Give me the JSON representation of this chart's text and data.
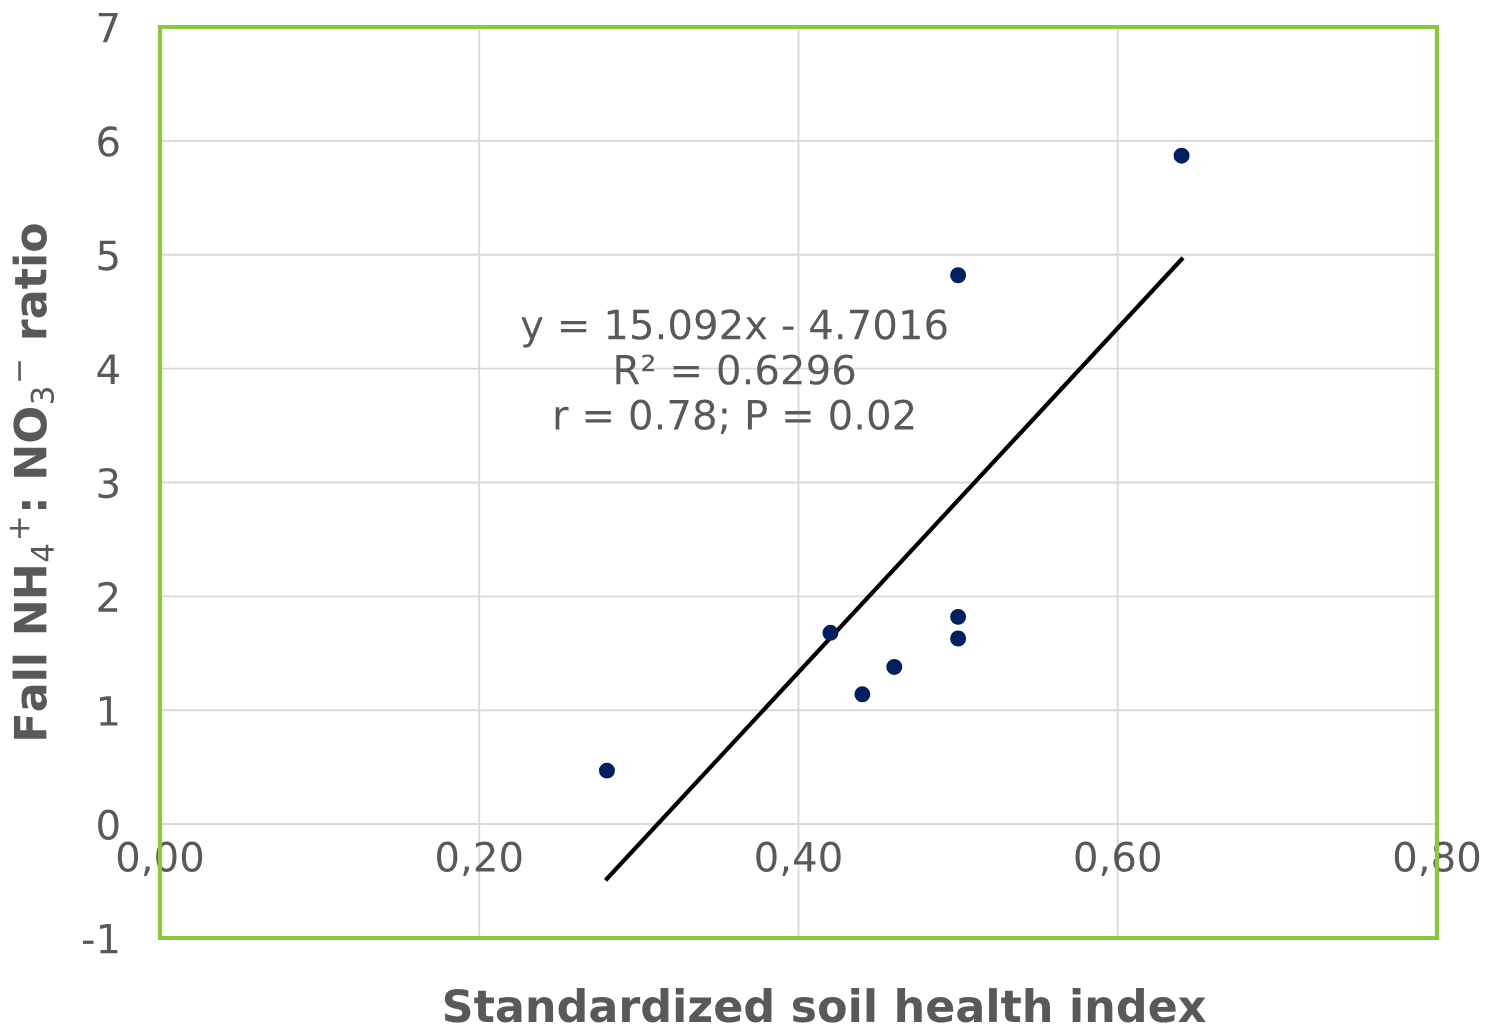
{
  "chart_data": {
    "type": "scatter",
    "xlabel": "Standardized soil health index",
    "ylabel": "Fall NH$_{4}$$^{+}$: NO$_{3}$$^{−}$ ratio",
    "series": [
      {
        "type": "scatter",
        "color": "#002060",
        "marker": "circle",
        "x": [
          0.28,
          0.42,
          0.44,
          0.46,
          0.5,
          0.5,
          0.5,
          0.64
        ],
        "values": [
          0.47,
          1.68,
          1.14,
          1.38,
          1.82,
          1.63,
          4.82,
          5.87
        ]
      },
      {
        "type": "line",
        "color": "#000000",
        "line_style": "solid",
        "marker": "none",
        "x": [
          0.28,
          0.64
        ],
        "values": [
          -0.48,
          4.96
        ]
      }
    ],
    "annotations": [
      "y = 15.092x - 4.7016\nR² = 0.6296\nr = 0.78; P = 0.02"
    ],
    "xlim": [
      0,
      0.8
    ],
    "xticks": [
      {
        "value": 0,
        "label": "0,00"
      },
      {
        "value": 0.2,
        "label": "0,20"
      },
      {
        "value": 0.4,
        "label": "0,40"
      },
      {
        "value": 0.6,
        "label": "0,60"
      },
      {
        "value": 0.8,
        "label": "0,80"
      }
    ],
    "ylim": [
      -1,
      7
    ],
    "yticks": [
      -1,
      0,
      1,
      2,
      3,
      4,
      5,
      6,
      7
    ],
    "grid": true,
    "legend": false
  }
}
